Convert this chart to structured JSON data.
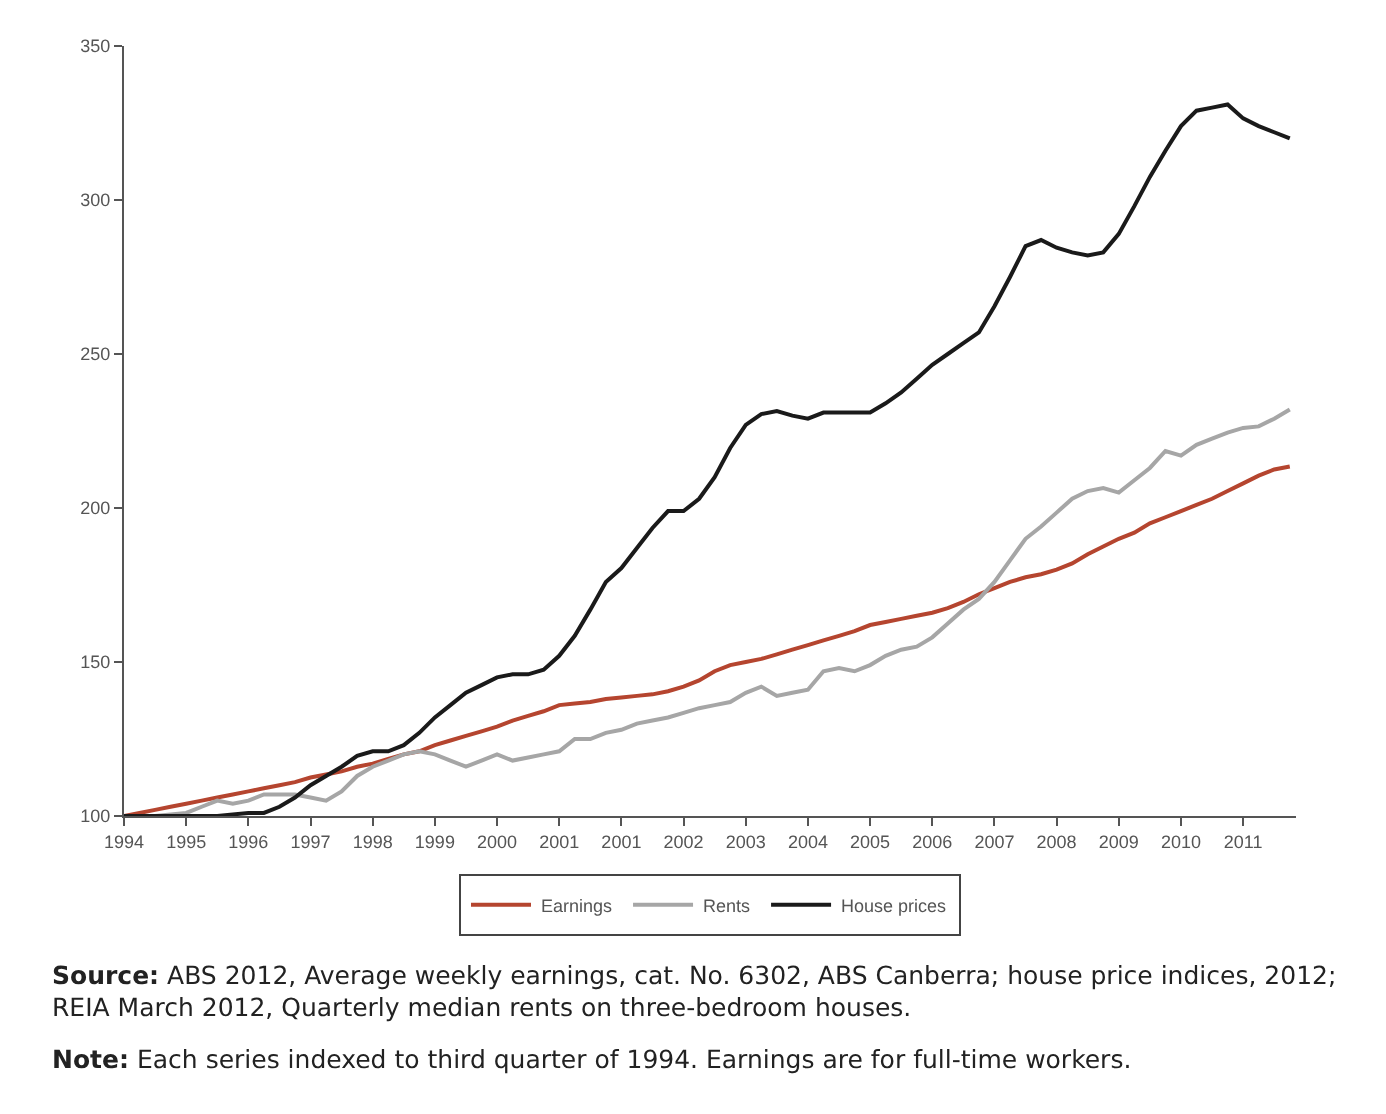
{
  "chart_data": {
    "type": "line",
    "ylim": [
      100,
      350
    ],
    "categories": [
      "1994",
      null,
      null,
      null,
      "1995",
      null,
      null,
      null,
      "1996",
      null,
      null,
      null,
      "1997",
      null,
      null,
      null,
      "1998",
      null,
      null,
      null,
      "1999",
      null,
      null,
      null,
      "2000",
      null,
      null,
      null,
      "2001",
      null,
      null,
      null,
      "2001",
      null,
      null,
      null,
      "2002",
      null,
      null,
      null,
      "2003",
      null,
      null,
      null,
      "2004",
      null,
      null,
      null,
      "2005",
      null,
      null,
      null,
      "2006",
      null,
      null,
      null,
      "2007",
      null,
      null,
      null,
      "2008",
      null,
      null,
      null,
      "2009",
      null,
      null,
      null,
      "2010",
      null,
      null,
      null,
      "2011",
      null,
      null,
      null
    ],
    "yticks": [
      100,
      150,
      200,
      250,
      300,
      350
    ],
    "grid": false,
    "legend": "bottom",
    "marker": "none",
    "line_style": "solid",
    "series": [
      {
        "name": "Earnings",
        "color": "#b5452f",
        "values": [
          100,
          101,
          102,
          103,
          104,
          105,
          106,
          107,
          108,
          109,
          110,
          111,
          112.5,
          113.5,
          114.5,
          116,
          117,
          118.5,
          120,
          121,
          123,
          124.5,
          126,
          127.5,
          129,
          131,
          132.5,
          134,
          136,
          136.5,
          137,
          138,
          138.5,
          139,
          139.5,
          140.5,
          142,
          144,
          147,
          149,
          150,
          151,
          152.5,
          154,
          155.5,
          157,
          158.5,
          160,
          162,
          163,
          164,
          165,
          166,
          167.5,
          169.5,
          172,
          174,
          176,
          177.5,
          178.5,
          180,
          182,
          185,
          187.5,
          190,
          192,
          195,
          197,
          199,
          201,
          203,
          205.5,
          208,
          210.5,
          212.5,
          213.5
        ]
      },
      {
        "name": "Rents",
        "color": "#a6a6a6",
        "values": [
          100,
          100,
          100,
          100.5,
          101,
          103,
          105,
          104,
          105,
          107,
          107,
          107,
          106,
          105,
          108,
          113,
          116,
          118,
          120,
          121,
          120,
          118,
          116,
          118,
          120,
          118,
          119,
          120,
          121,
          125,
          125,
          127,
          128,
          130,
          131,
          132,
          133.5,
          135,
          136,
          137,
          140,
          142,
          139,
          140,
          141,
          147,
          148,
          147,
          149,
          152,
          154,
          155,
          158,
          162.5,
          167,
          170.5,
          176,
          183,
          190,
          194,
          198.5,
          203,
          205.5,
          206.5,
          205,
          209,
          213,
          218.5,
          217,
          220.5,
          222.5,
          224.5,
          226,
          226.5,
          229,
          232
        ]
      },
      {
        "name": "House prices",
        "color": "#1a1a1a",
        "values": [
          100,
          100,
          100,
          100,
          100,
          100,
          100,
          100.5,
          101,
          101,
          103,
          106,
          110,
          113,
          116,
          119.5,
          121,
          121,
          123,
          127,
          132,
          136,
          140,
          142.5,
          145,
          146,
          146,
          147.5,
          152,
          158.5,
          167,
          176,
          180.5,
          187,
          193.5,
          199,
          199,
          203,
          210,
          219.5,
          227,
          230.5,
          231.5,
          230,
          229,
          231,
          231,
          231,
          231,
          234,
          237.5,
          242,
          246.5,
          250,
          253.5,
          257,
          265.5,
          275,
          285,
          287,
          284.5,
          283,
          282,
          283,
          289,
          298,
          307.5,
          316,
          324,
          329,
          330,
          331,
          326.5,
          324,
          322,
          320
        ]
      }
    ],
    "annotations": [
      "Source: ABS 2012, Average weekly earnings, cat. No. 6302, ABS Canberra; house price indices, 2012; REIA March 2012, Quarterly median rents on three-bedroom houses.",
      "Note: Each series indexed to third quarter of 1994. Earnings are for full-time workers."
    ]
  }
}
